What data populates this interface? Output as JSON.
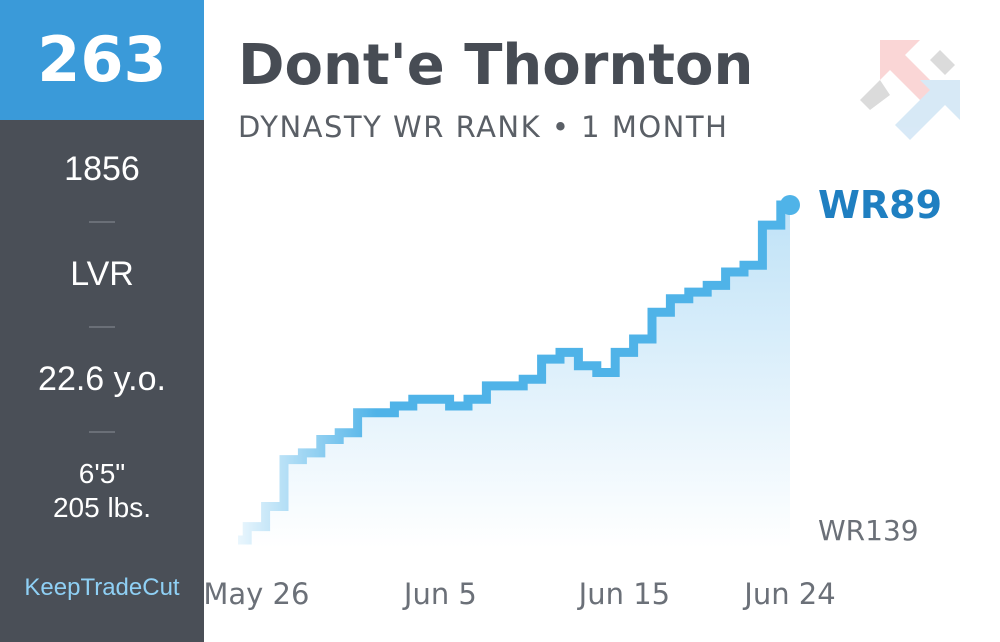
{
  "sidebar": {
    "overall_rank": "263",
    "value": "1856",
    "team": "LVR",
    "age": "22.6 y.o.",
    "height": "6'5\"",
    "weight": "205 lbs.",
    "brand": "KeepTradeCut"
  },
  "chart_data": {
    "type": "step",
    "title": "Dont'e Thornton",
    "subtitle": "DYNASTY WR RANK • 1 MONTH",
    "categories": [
      null,
      "May 26",
      null,
      null,
      null,
      null,
      null,
      null,
      null,
      null,
      null,
      "Jun 5",
      null,
      null,
      null,
      null,
      null,
      null,
      null,
      null,
      null,
      "Jun 15",
      null,
      null,
      null,
      null,
      null,
      null,
      null,
      null,
      "Jun 24"
    ],
    "values": [
      139,
      137,
      134,
      127,
      126,
      124,
      123,
      120,
      120,
      119,
      118,
      118,
      119,
      118,
      116,
      116,
      115,
      112,
      111,
      113,
      114,
      111,
      109,
      105,
      103,
      102,
      101,
      99,
      98,
      92,
      89
    ],
    "color": "#4fb3e8",
    "ylim": [
      139,
      89
    ],
    "yticks": [
      {
        "value": 89,
        "label": "WR89"
      },
      {
        "value": 139,
        "label": "WR139"
      }
    ]
  }
}
